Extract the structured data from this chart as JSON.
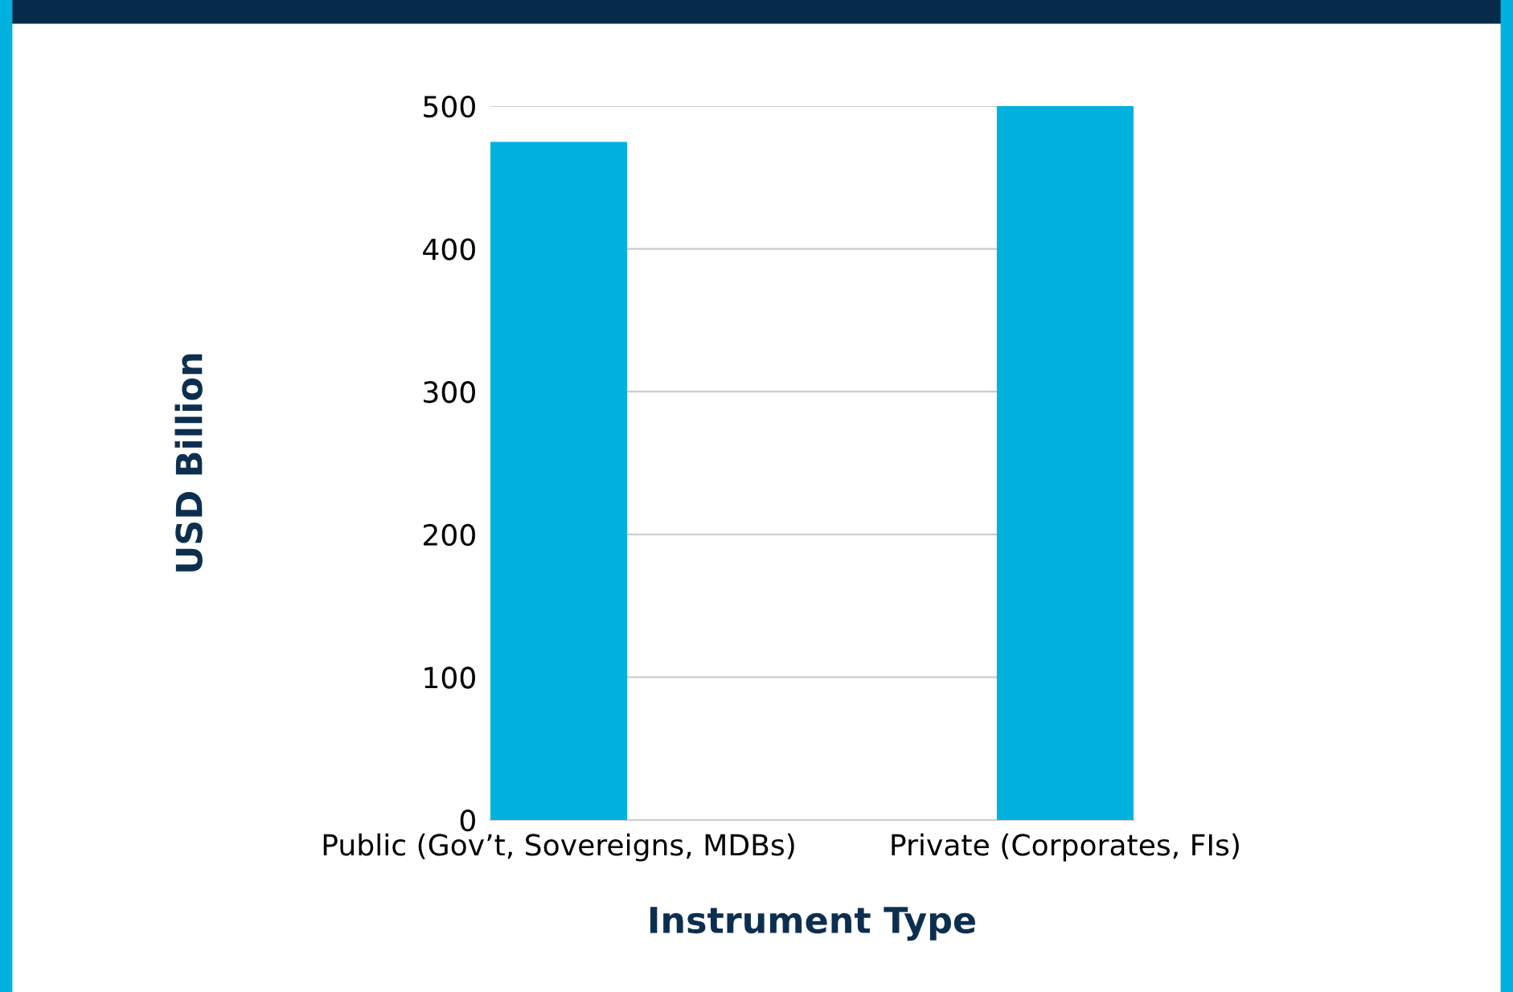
{
  "chart_data": {
    "type": "bar",
    "categories": [
      "Public (Gov’t, Sovereigns, MDBs)",
      "Private (Corporates, FIs)"
    ],
    "values": [
      475,
      500
    ],
    "color": "#00b2dd",
    "xlabel": "Instrument Type",
    "ylabel": "USD Billion",
    "ylim": [
      0,
      500
    ],
    "yticks": [
      0,
      100,
      200,
      300,
      400,
      500
    ],
    "grid": "y",
    "legend": false
  }
}
